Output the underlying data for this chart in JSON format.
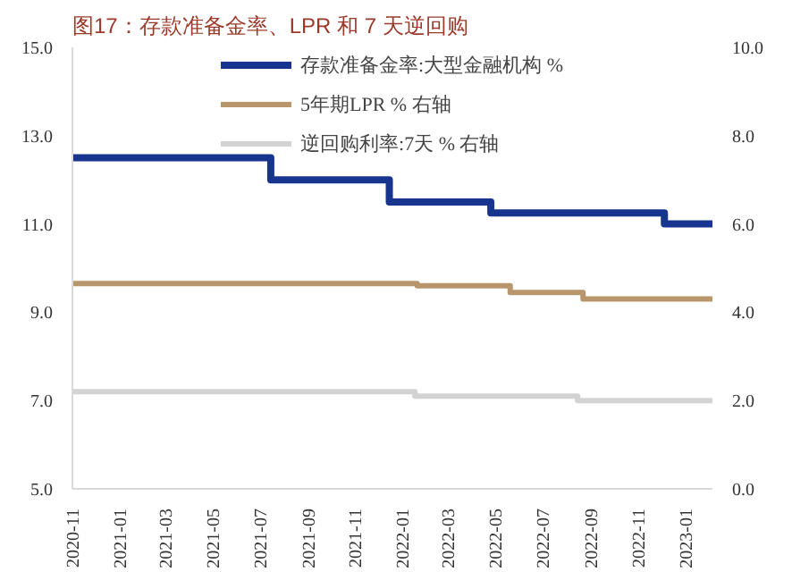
{
  "chart_data": {
    "type": "step",
    "title": "图17：存款准备金率、LPR 和 7 天逆回购",
    "xlim": [
      "2020-11-01",
      "2023-02-05"
    ],
    "xticks": [
      "2020-11",
      "2021-01",
      "2021-03",
      "2021-05",
      "2021-07",
      "2021-09",
      "2021-11",
      "2022-01",
      "2022-03",
      "2022-05",
      "2022-07",
      "2022-09",
      "2022-11",
      "2023-01"
    ],
    "ylim": [
      5,
      15
    ],
    "yticks": [
      {
        "value": 5,
        "label": "5.0"
      },
      {
        "value": 7,
        "label": "7.0"
      },
      {
        "value": 9,
        "label": "9.0"
      },
      {
        "value": 11,
        "label": "11.0"
      },
      {
        "value": 13,
        "label": "13.0"
      },
      {
        "value": 15,
        "label": "15.0"
      }
    ],
    "y2lim": [
      0,
      10
    ],
    "y2ticks": [
      {
        "value": 0,
        "label": "0.0"
      },
      {
        "value": 2,
        "label": "2.0"
      },
      {
        "value": 4,
        "label": "4.0"
      },
      {
        "value": 6,
        "label": "6.0"
      },
      {
        "value": 8,
        "label": "8.0"
      },
      {
        "value": 10,
        "label": "10.0"
      }
    ],
    "grid": false,
    "legend": "top",
    "series": [
      {
        "name": "存款准备金率:大型金融机构 %",
        "color": "#17358f",
        "x": [
          "2020-11-01",
          "2021-07-15",
          "2021-12-15",
          "2022-04-25",
          "2022-12-05",
          "2023-02-05"
        ],
        "values": [
          12.5,
          12.0,
          11.5,
          11.25,
          11.0,
          11.0
        ]
      },
      {
        "name": "5年期LPR % 右轴",
        "color": "#b8956a",
        "axis": "y2",
        "x": [
          "2020-11-01",
          "2022-01-20",
          "2022-05-20",
          "2022-08-22",
          "2023-02-05"
        ],
        "values": [
          4.65,
          4.6,
          4.45,
          4.3,
          4.3
        ]
      },
      {
        "name": "逆回购利率:7天 % 右轴",
        "color": "#d3d3d3",
        "axis": "y2",
        "x": [
          "2020-11-01",
          "2022-01-17",
          "2022-08-15",
          "2023-02-05"
        ],
        "values": [
          2.2,
          2.1,
          2.0,
          2.0
        ]
      }
    ]
  }
}
